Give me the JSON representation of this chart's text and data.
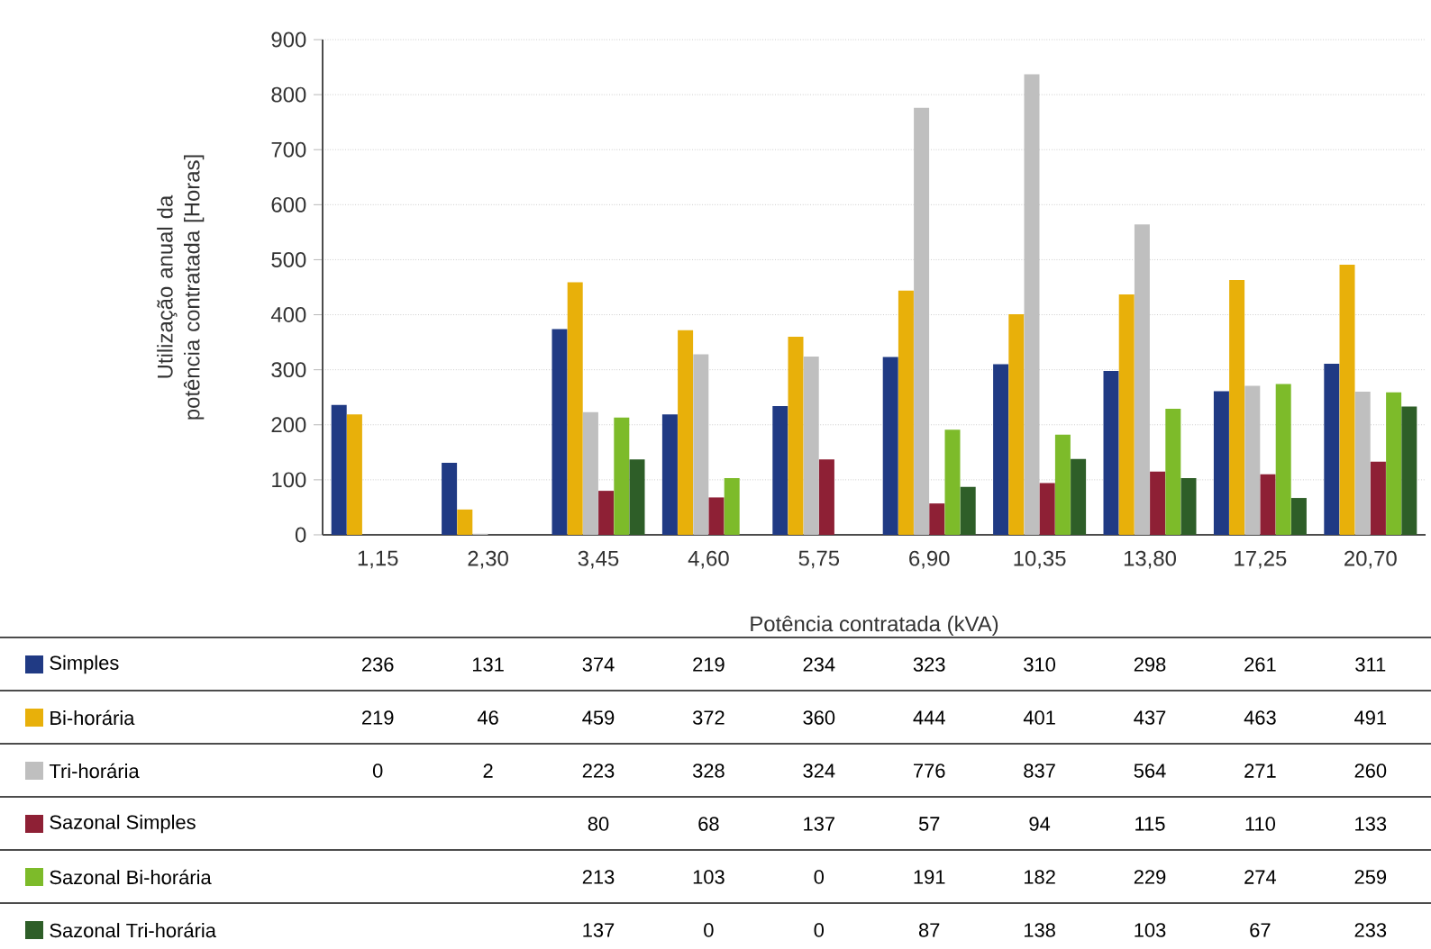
{
  "chart_data": {
    "type": "bar",
    "ylabel": "Utilização anual da potência contratada [Horas]",
    "xlabel": "Potência contratada (kVA)",
    "categories": [
      "1,15",
      "2,30",
      "3,45",
      "4,60",
      "5,75",
      "6,90",
      "10,35",
      "13,80",
      "17,25",
      "20,70"
    ],
    "series": [
      {
        "name": "Simples",
        "color": "#203a84",
        "values": [
          236,
          131,
          374,
          219,
          234,
          323,
          310,
          298,
          261,
          311
        ]
      },
      {
        "name": "Bi-horária",
        "color": "#e8b00a",
        "values": [
          219,
          46,
          459,
          372,
          360,
          444,
          401,
          437,
          463,
          491
        ]
      },
      {
        "name": "Tri-horária",
        "color": "#bfbfbf",
        "values": [
          0,
          2,
          223,
          328,
          324,
          776,
          837,
          564,
          271,
          260
        ]
      },
      {
        "name": "Sazonal Simples",
        "color": "#8e2035",
        "values": [
          null,
          null,
          80,
          68,
          137,
          57,
          94,
          115,
          110,
          133
        ]
      },
      {
        "name": "Sazonal Bi-horária",
        "color": "#7dbb2a",
        "values": [
          null,
          null,
          213,
          103,
          0,
          191,
          182,
          229,
          274,
          259
        ]
      },
      {
        "name": "Sazonal Tri-horária",
        "color": "#2e5e28",
        "values": [
          null,
          null,
          137,
          0,
          0,
          87,
          138,
          103,
          67,
          233
        ]
      }
    ],
    "ylim": [
      0,
      900
    ],
    "yticks": [
      0,
      100,
      200,
      300,
      400,
      500,
      600,
      700,
      800,
      900
    ],
    "grid": "y",
    "legend": "bottom",
    "data_labels": true
  }
}
